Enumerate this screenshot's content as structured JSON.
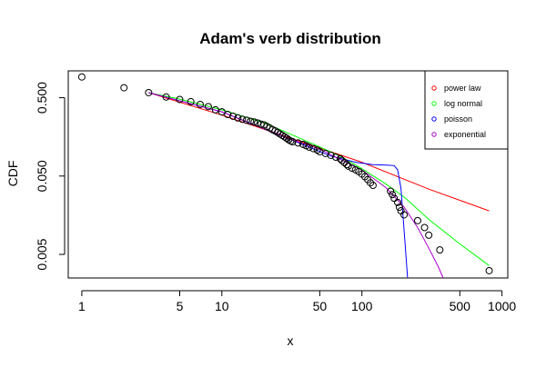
{
  "chart_data": {
    "type": "scatter",
    "title": "Adam's verb distribution",
    "xlabel": "x",
    "ylabel": "CDF",
    "x_scale": "log",
    "y_scale": "log",
    "xlim": [
      0.8,
      1100
    ],
    "ylim": [
      0.0025,
      1.1
    ],
    "x_ticks": [
      1,
      5,
      10,
      50,
      100,
      500,
      1000
    ],
    "x_tick_labels": [
      "1",
      "5",
      "10",
      "50",
      "100",
      "500",
      "1000"
    ],
    "y_ticks": [
      0.005,
      0.05,
      0.5
    ],
    "y_tick_labels": [
      "0.005",
      "0.050",
      "0.500"
    ],
    "legend_position": "top-right",
    "points": [
      [
        1,
        0.92
      ],
      [
        2,
        0.67
      ],
      [
        3,
        0.58
      ],
      [
        4,
        0.51
      ],
      [
        5,
        0.475
      ],
      [
        6,
        0.445
      ],
      [
        7,
        0.41
      ],
      [
        8,
        0.385
      ],
      [
        9,
        0.35
      ],
      [
        10,
        0.33
      ],
      [
        11,
        0.305
      ],
      [
        12,
        0.29
      ],
      [
        13,
        0.275
      ],
      [
        14,
        0.265
      ],
      [
        15,
        0.258
      ],
      [
        16,
        0.25
      ],
      [
        17,
        0.245
      ],
      [
        18,
        0.238
      ],
      [
        19,
        0.23
      ],
      [
        20,
        0.225
      ],
      [
        21,
        0.215
      ],
      [
        22,
        0.205
      ],
      [
        23,
        0.195
      ],
      [
        24,
        0.188
      ],
      [
        25,
        0.18
      ],
      [
        26,
        0.172
      ],
      [
        27,
        0.165
      ],
      [
        28,
        0.158
      ],
      [
        29,
        0.152
      ],
      [
        30,
        0.145
      ],
      [
        31,
        0.14
      ],
      [
        32,
        0.137
      ],
      [
        35,
        0.132
      ],
      [
        38,
        0.127
      ],
      [
        40,
        0.122
      ],
      [
        42,
        0.117
      ],
      [
        45,
        0.112
      ],
      [
        48,
        0.107
      ],
      [
        50,
        0.102
      ],
      [
        55,
        0.097
      ],
      [
        60,
        0.092
      ],
      [
        65,
        0.087
      ],
      [
        70,
        0.083
      ],
      [
        72,
        0.079
      ],
      [
        75,
        0.074
      ],
      [
        78,
        0.07
      ],
      [
        80,
        0.067
      ],
      [
        85,
        0.063
      ],
      [
        90,
        0.06
      ],
      [
        95,
        0.057
      ],
      [
        100,
        0.053
      ],
      [
        105,
        0.049
      ],
      [
        110,
        0.045
      ],
      [
        115,
        0.041
      ],
      [
        120,
        0.038
      ],
      [
        160,
        0.032
      ],
      [
        165,
        0.029
      ],
      [
        170,
        0.026
      ],
      [
        180,
        0.023
      ],
      [
        185,
        0.02
      ],
      [
        190,
        0.018
      ],
      [
        200,
        0.016
      ],
      [
        250,
        0.0135
      ],
      [
        280,
        0.011
      ],
      [
        300,
        0.0088
      ],
      [
        360,
        0.0057
      ],
      [
        810,
        0.0031
      ]
    ],
    "series": [
      {
        "name": "power law",
        "color": "#ff0000",
        "points": [
          [
            3,
            0.58
          ],
          [
            10,
            0.3
          ],
          [
            30,
            0.155
          ],
          [
            100,
            0.075
          ],
          [
            300,
            0.034
          ],
          [
            810,
            0.018
          ]
        ]
      },
      {
        "name": "log normal",
        "color": "#00ff00",
        "points": [
          [
            3,
            0.58
          ],
          [
            5,
            0.48
          ],
          [
            10,
            0.35
          ],
          [
            20,
            0.24
          ],
          [
            40,
            0.14
          ],
          [
            70,
            0.09
          ],
          [
            100,
            0.062
          ],
          [
            150,
            0.039
          ],
          [
            200,
            0.027
          ],
          [
            300,
            0.014
          ],
          [
            500,
            0.0068
          ],
          [
            810,
            0.0036
          ]
        ]
      },
      {
        "name": "poisson",
        "color": "#0000ff",
        "points": [
          [
            3,
            0.58
          ],
          [
            10,
            0.33
          ],
          [
            30,
            0.15
          ],
          [
            60,
            0.09
          ],
          [
            90,
            0.075
          ],
          [
            120,
            0.07
          ],
          [
            150,
            0.069
          ],
          [
            170,
            0.068
          ],
          [
            180,
            0.06
          ],
          [
            190,
            0.035
          ],
          [
            200,
            0.01
          ],
          [
            212,
            0.0025
          ]
        ]
      },
      {
        "name": "exponential",
        "color": "#aa00cc",
        "points": [
          [
            3,
            0.58
          ],
          [
            10,
            0.33
          ],
          [
            30,
            0.15
          ],
          [
            50,
            0.11
          ],
          [
            100,
            0.06
          ],
          [
            150,
            0.035
          ],
          [
            200,
            0.02
          ],
          [
            250,
            0.011
          ],
          [
            300,
            0.006
          ],
          [
            350,
            0.0035
          ],
          [
            380,
            0.0025
          ]
        ]
      }
    ]
  }
}
